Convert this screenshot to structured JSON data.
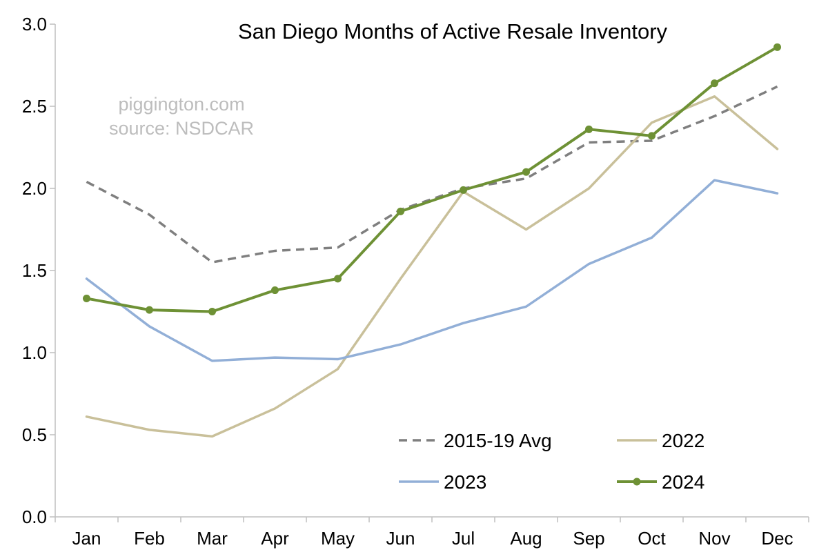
{
  "chart_data": {
    "type": "line",
    "title": "San Diego Months of Active Resale Inventory",
    "watermark": [
      "piggington.com",
      "source: NSDCAR"
    ],
    "xlabel": "",
    "ylabel": "",
    "categories": [
      "Jan",
      "Feb",
      "Mar",
      "Apr",
      "May",
      "Jun",
      "Jul",
      "Aug",
      "Sep",
      "Oct",
      "Nov",
      "Dec"
    ],
    "ylim": [
      0,
      3.0
    ],
    "yticks": [
      "0.0",
      "0.5",
      "1.0",
      "1.5",
      "2.0",
      "2.5",
      "3.0"
    ],
    "grid": false,
    "legend_position": "bottom-right",
    "series": [
      {
        "name": "2015-19 Avg",
        "color": "#7f7f7f",
        "style": "dashed",
        "markers": false,
        "values": [
          2.04,
          1.84,
          1.55,
          1.62,
          1.64,
          1.87,
          2.0,
          2.06,
          2.28,
          2.29,
          2.44,
          2.62
        ]
      },
      {
        "name": "2022",
        "color": "#c9c09a",
        "style": "solid",
        "markers": false,
        "values": [
          0.61,
          0.53,
          0.49,
          0.66,
          0.9,
          1.45,
          1.98,
          1.75,
          2.0,
          2.4,
          2.56,
          2.24
        ]
      },
      {
        "name": "2023",
        "color": "#92afd7",
        "style": "solid",
        "markers": false,
        "values": [
          1.45,
          1.16,
          0.95,
          0.97,
          0.96,
          1.05,
          1.18,
          1.28,
          1.54,
          1.7,
          2.05,
          1.97
        ]
      },
      {
        "name": "2024",
        "color": "#6e9135",
        "style": "solid",
        "markers": true,
        "values": [
          1.33,
          1.26,
          1.25,
          1.38,
          1.45,
          1.86,
          1.99,
          2.1,
          2.36,
          2.32,
          2.64,
          2.86
        ]
      }
    ]
  }
}
